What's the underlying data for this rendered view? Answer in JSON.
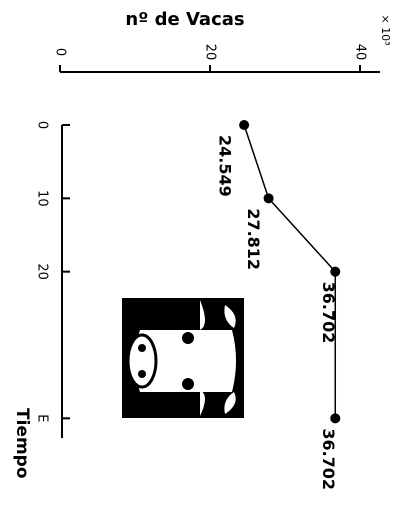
{
  "chart_data": {
    "type": "line",
    "title": "nº de Vacas",
    "y_unit": "× 10³",
    "xlabel": "Tiempo",
    "x": [
      0,
      10,
      20,
      40
    ],
    "values": [
      24.549,
      27.812,
      36.702,
      36.702
    ],
    "xlim": [
      0,
      42
    ],
    "xticks": [
      0,
      10,
      20,
      {
        "value": 40,
        "label": "E"
      }
    ],
    "ylim": [
      0,
      42
    ],
    "yticks": [
      0,
      20,
      40
    ],
    "color": "#000000"
  }
}
